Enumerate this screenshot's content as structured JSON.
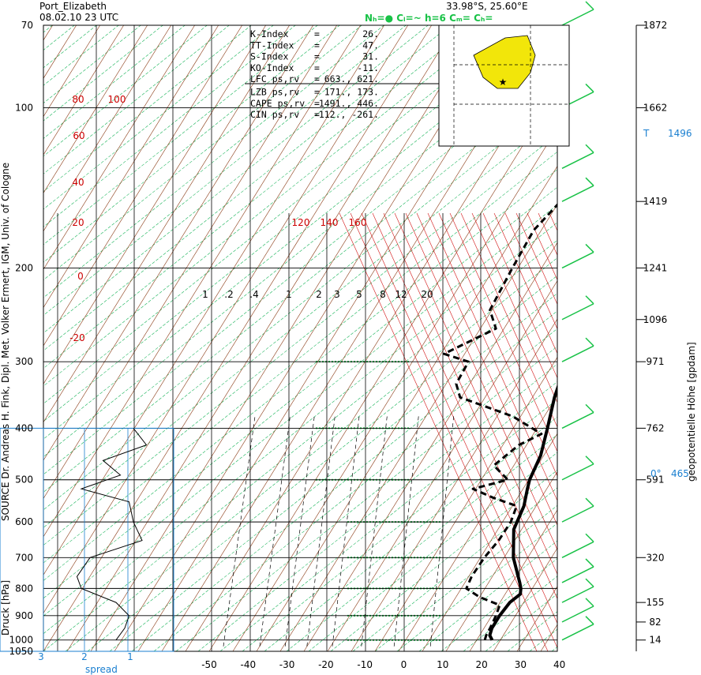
{
  "header": {
    "station": "Port_Elizabeth",
    "datetime": "08.02.10  23 UTC",
    "coords": "33.98°S, 25.60°E",
    "cloud_info": [
      "N",
      "=",
      "C",
      "=~",
      "h=6",
      "C",
      "=",
      "C",
      "="
    ],
    "cloud_info_label": "Nₕ=●  Cₗ=~   h=6    Cₘ=    Cₕ="
  },
  "source_label": "SOURCE Dr. Andreas H. Fink, Dipl. Met. Volker Ermert, IGM, Univ. of Cologne",
  "indices": [
    {
      "name": "K-Index",
      "eq": "=",
      "value": "26."
    },
    {
      "name": "TT-Index",
      "eq": "=",
      "value": "47."
    },
    {
      "name": "S-Index",
      "eq": "=",
      "value": "31."
    },
    {
      "name": "KO-Index",
      "eq": "=",
      "value": "-11."
    },
    {
      "name": "LFC  ps,rv",
      "eq": "=",
      "value": "663., 621."
    },
    {
      "name": "LZB  ps,rv",
      "eq": "=",
      "value": "171., 173."
    },
    {
      "name": "CAPE ps,rv",
      "eq": "=",
      "value": "1491., 446."
    },
    {
      "name": "CIN  ps,rv",
      "eq": "=",
      "value": "-112., -261."
    }
  ],
  "right_axis_title": "geopotentielle Höhe [gpdam]",
  "left_axis_title": "Druck [hPa]",
  "spread_label": "spread",
  "tropopause": {
    "label": "T",
    "value": "1496"
  },
  "freezing_level": {
    "label": "0°",
    "value": "465"
  },
  "colors": {
    "dry_adiabat": "#8a3a14",
    "moist_adiabat": "#d21414",
    "mixing_ratio": "#000000",
    "isotherm_skew": "#19b45a",
    "grid": "#000000",
    "spread_box": "#1a7fd0",
    "wind": "#19c247",
    "map_land": "#f2e60a"
  },
  "chart_data": {
    "type": "skew-T log-p sounding",
    "pressure_levels": [
      70,
      100,
      200,
      300,
      400,
      500,
      600,
      700,
      800,
      900,
      1000,
      1050
    ],
    "height_labels": [
      {
        "p": 70,
        "h": "1872"
      },
      {
        "p": 100,
        "h": "1662"
      },
      {
        "p": 150,
        "h": "1419"
      },
      {
        "p": 200,
        "h": "1241"
      },
      {
        "p": 250,
        "h": "1096"
      },
      {
        "p": 300,
        "h": "971"
      },
      {
        "p": 400,
        "h": "762"
      },
      {
        "p": 500,
        "h": "591"
      },
      {
        "p": 700,
        "h": "320"
      },
      {
        "p": 850,
        "h": "155"
      },
      {
        "p": 925,
        "h": "82"
      },
      {
        "p": 1000,
        "h": "14"
      }
    ],
    "temperature_ticks": [
      -50,
      -40,
      -30,
      -20,
      -10,
      0,
      10,
      20,
      30,
      40
    ],
    "spread_ticks": [
      3,
      2,
      1
    ],
    "isotherm_labels": [
      80,
      100,
      60,
      40,
      20,
      0,
      -20
    ],
    "moist_labels": [
      120,
      140,
      160
    ],
    "mixing_ratio_labels": [
      "1",
      ".2",
      ".4",
      "1",
      "2",
      "3",
      "5",
      "8",
      "12",
      "20"
    ],
    "temperature_profile": [
      {
        "p": 1000,
        "t": 24
      },
      {
        "p": 980,
        "t": 22
      },
      {
        "p": 950,
        "t": 20.5
      },
      {
        "p": 900,
        "t": 19
      },
      {
        "p": 850,
        "t": 18
      },
      {
        "p": 820,
        "t": 18.5
      },
      {
        "p": 800,
        "t": 17
      },
      {
        "p": 780,
        "t": 15
      },
      {
        "p": 700,
        "t": 6
      },
      {
        "p": 620,
        "t": -2
      },
      {
        "p": 560,
        "t": -6
      },
      {
        "p": 520,
        "t": -10
      },
      {
        "p": 500,
        "t": -12
      },
      {
        "p": 450,
        "t": -16
      },
      {
        "p": 400,
        "t": -22
      },
      {
        "p": 350,
        "t": -29
      },
      {
        "p": 300,
        "t": -36
      },
      {
        "p": 250,
        "t": -43
      },
      {
        "p": 200,
        "t": -53
      },
      {
        "p": 170,
        "t": -57
      },
      {
        "p": 150,
        "t": -60
      },
      {
        "p": 130,
        "t": -61
      },
      {
        "p": 115,
        "t": -63
      },
      {
        "p": 100,
        "t": -64
      },
      {
        "p": 85,
        "t": -66
      },
      {
        "p": 70,
        "t": -68
      }
    ],
    "dewpoint_profile": [
      {
        "p": 1000,
        "td": 22
      },
      {
        "p": 980,
        "td": 21
      },
      {
        "p": 950,
        "td": 20
      },
      {
        "p": 900,
        "td": 18
      },
      {
        "p": 860,
        "td": 16
      },
      {
        "p": 830,
        "td": 8
      },
      {
        "p": 800,
        "td": 2
      },
      {
        "p": 760,
        "td": 0
      },
      {
        "p": 700,
        "td": -2
      },
      {
        "p": 650,
        "td": -3
      },
      {
        "p": 600,
        "td": -5
      },
      {
        "p": 560,
        "td": -8
      },
      {
        "p": 540,
        "td": -17
      },
      {
        "p": 520,
        "td": -25
      },
      {
        "p": 500,
        "td": -18
      },
      {
        "p": 470,
        "td": -26
      },
      {
        "p": 430,
        "td": -25
      },
      {
        "p": 410,
        "td": -22
      },
      {
        "p": 380,
        "td": -35
      },
      {
        "p": 350,
        "td": -55
      },
      {
        "p": 330,
        "td": -60
      },
      {
        "p": 300,
        "td": -63
      },
      {
        "p": 290,
        "td": -72
      },
      {
        "p": 260,
        "td": -65
      },
      {
        "p": 240,
        "td": -72
      },
      {
        "p": 200,
        "td": -78
      },
      {
        "p": 170,
        "td": -83
      },
      {
        "p": 150,
        "td": -84
      },
      {
        "p": 130,
        "td": -86
      },
      {
        "p": 115,
        "td": -86
      },
      {
        "p": 100,
        "td": -87
      },
      {
        "p": 70,
        "td": -85
      }
    ],
    "spread_profile": [
      {
        "p": 1000,
        "s": 1.2
      },
      {
        "p": 950,
        "s": 1.0
      },
      {
        "p": 900,
        "s": 0.9
      },
      {
        "p": 850,
        "s": 1.2
      },
      {
        "p": 800,
        "s": 2.0
      },
      {
        "p": 760,
        "s": 2.1
      },
      {
        "p": 700,
        "s": 1.8
      },
      {
        "p": 650,
        "s": 0.6
      },
      {
        "p": 600,
        "s": 0.8
      },
      {
        "p": 550,
        "s": 0.9
      },
      {
        "p": 520,
        "s": 2.0
      },
      {
        "p": 490,
        "s": 1.1
      },
      {
        "p": 460,
        "s": 1.5
      },
      {
        "p": 430,
        "s": 0.5
      },
      {
        "p": 400,
        "s": 0.8
      }
    ],
    "wind_levels": [
      1000,
      925,
      850,
      780,
      700,
      600,
      500,
      400,
      300,
      250,
      200,
      150,
      130,
      100,
      70
    ]
  }
}
